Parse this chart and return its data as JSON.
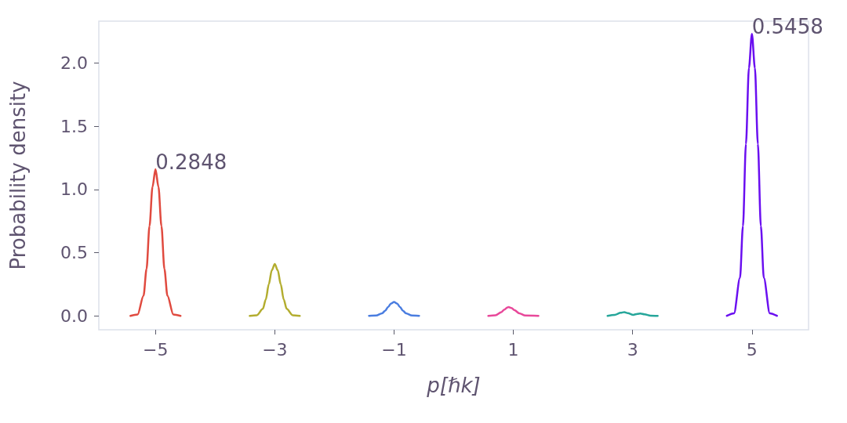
{
  "chart_data": {
    "type": "line",
    "xlabel": "p[ℏk]",
    "ylabel": "Probability density",
    "xlim": [
      -5.95,
      5.95
    ],
    "ylim": [
      -0.11,
      2.33
    ],
    "xticks": [
      {
        "value": -5,
        "label": "−5"
      },
      {
        "value": -3,
        "label": "−3"
      },
      {
        "value": -1,
        "label": "−1"
      },
      1,
      3,
      5
    ],
    "yticks": [
      {
        "value": 0,
        "label": "0.0"
      },
      0.5,
      {
        "value": 1,
        "label": "1.0"
      },
      1.5,
      {
        "value": 2,
        "label": "2.0"
      }
    ],
    "grid": false,
    "marker": "none",
    "line_style": "solid",
    "series": [
      {
        "color": "#e04a3f",
        "x": [
          -5.42,
          -5.3,
          -5.2,
          -5.15,
          -5.1,
          -5.05,
          -5,
          -4.95,
          -4.9,
          -4.85,
          -4.8,
          -4.7,
          -4.58
        ],
        "values": [
          0,
          0.01,
          0.16,
          0.37,
          0.71,
          1.02,
          1.16,
          1.02,
          0.71,
          0.37,
          0.16,
          0.01,
          0
        ]
      },
      {
        "color": "#b3ad2f",
        "x": [
          -3.42,
          -3.3,
          -3.2,
          -3.15,
          -3.1,
          -3.05,
          -3,
          -2.95,
          -2.9,
          -2.85,
          -2.8,
          -2.7,
          -2.58
        ],
        "values": [
          0,
          0.005,
          0.055,
          0.13,
          0.25,
          0.36,
          0.41,
          0.36,
          0.25,
          0.13,
          0.055,
          0.005,
          0
        ]
      },
      {
        "color": "#4a7de0",
        "x": [
          -1.42,
          -1.3,
          -1.2,
          -1.15,
          -1.1,
          -1.05,
          -1,
          -0.95,
          -0.9,
          -0.85,
          -0.8,
          -0.7,
          -0.58
        ],
        "values": [
          0,
          0.003,
          0.02,
          0.04,
          0.07,
          0.098,
          0.11,
          0.098,
          0.07,
          0.04,
          0.02,
          0.003,
          0
        ]
      },
      {
        "color": "#e8489a",
        "x": [
          0.58,
          0.7,
          0.8,
          0.85,
          0.9,
          0.92,
          0.97,
          1.02,
          1.1,
          1.2,
          1.42
        ],
        "values": [
          0,
          0.005,
          0.03,
          0.05,
          0.066,
          0.07,
          0.062,
          0.045,
          0.02,
          0.003,
          0
        ]
      },
      {
        "color": "#26a69a",
        "x": [
          2.58,
          2.7,
          2.8,
          2.86,
          2.92,
          3.01,
          3.08,
          3.13,
          3.2,
          3.3,
          3.42
        ],
        "values": [
          0,
          0.008,
          0.024,
          0.03,
          0.022,
          0.008,
          0.016,
          0.018,
          0.012,
          0.002,
          0
        ]
      },
      {
        "color": "#6a0ff0",
        "x": [
          4.58,
          4.7,
          4.8,
          4.85,
          4.9,
          4.95,
          5,
          5.05,
          5.1,
          5.15,
          5.2,
          5.3,
          5.42
        ],
        "values": [
          0,
          0.02,
          0.3,
          0.71,
          1.36,
          1.96,
          2.23,
          1.96,
          1.36,
          0.71,
          0.3,
          0.02,
          0
        ]
      }
    ],
    "annotations": [
      {
        "text": "0.2848",
        "x": -5,
        "y": 1.16
      },
      {
        "text": "0.5458",
        "x": 5,
        "y": 2.23
      }
    ]
  }
}
